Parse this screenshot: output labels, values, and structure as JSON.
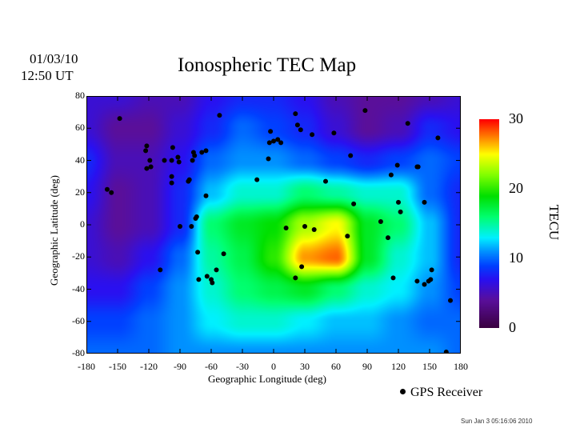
{
  "header": {
    "date": "01/03/10",
    "time": "12:50 UT"
  },
  "footer": {
    "timestamp": "Sun Jan  3 05:16:06 2010"
  },
  "chart_data": {
    "type": "heatmap",
    "title": "Ionospheric TEC Map",
    "xlabel": "Geographic Longitude (deg)",
    "ylabel": "Geographic Latitude (deg)",
    "xlim": [
      -180,
      180
    ],
    "ylim": [
      -80,
      80
    ],
    "xticks": [
      "-180",
      "-150",
      "-120",
      "-90",
      "-60",
      "-30",
      "0",
      "30",
      "60",
      "90",
      "120",
      "150",
      "180"
    ],
    "xtick_values": [
      -180,
      -150,
      -120,
      -90,
      -60,
      -30,
      0,
      30,
      60,
      90,
      120,
      150,
      180
    ],
    "yticks": [
      "80",
      "60",
      "40",
      "20",
      "0",
      "-20",
      "-40",
      "-60",
      "-80"
    ],
    "ytick_values": [
      80,
      60,
      40,
      20,
      0,
      -20,
      -40,
      -60,
      -80
    ],
    "colorbar": {
      "label": "TECU",
      "range": [
        0,
        30
      ],
      "ticks": [
        "30",
        "20",
        "10",
        "0"
      ],
      "tick_values": [
        30,
        20,
        10,
        0
      ],
      "colormap": [
        [
          0,
          "#3a003f"
        ],
        [
          4,
          "#5a0f9a"
        ],
        [
          7,
          "#2a10f0"
        ],
        [
          9,
          "#0040ff"
        ],
        [
          11,
          "#0090ff"
        ],
        [
          13,
          "#00f0ff"
        ],
        [
          16,
          "#00ff70"
        ],
        [
          19,
          "#00e000"
        ],
        [
          22,
          "#80ff00"
        ],
        [
          25,
          "#ffff00"
        ],
        [
          27.5,
          "#ff8000"
        ],
        [
          30,
          "#ff0000"
        ]
      ]
    },
    "grid_lons": [
      -180,
      -150,
      -120,
      -90,
      -60,
      -30,
      0,
      30,
      60,
      90,
      120,
      150,
      180
    ],
    "grid_lats": [
      80,
      60,
      40,
      20,
      0,
      -20,
      -40,
      -60,
      -80
    ],
    "tec_values": [
      [
        6,
        6,
        5,
        5,
        7,
        8,
        8,
        7,
        5,
        4,
        4,
        5,
        6
      ],
      [
        6,
        4,
        4,
        6,
        8,
        10,
        9,
        8,
        6,
        4,
        5,
        8,
        7
      ],
      [
        8,
        5,
        5,
        7,
        10,
        11,
        11,
        10,
        9,
        8,
        9,
        10,
        9
      ],
      [
        7,
        4,
        5,
        8,
        12,
        14,
        14,
        16,
        15,
        14,
        14,
        10,
        8
      ],
      [
        6,
        4,
        5,
        8,
        16,
        18,
        19,
        23,
        25,
        18,
        16,
        12,
        8
      ],
      [
        6,
        5,
        7,
        10,
        15,
        17,
        20,
        27,
        28,
        18,
        14,
        12,
        8
      ],
      [
        7,
        7,
        9,
        11,
        14,
        16,
        17,
        18,
        16,
        14,
        13,
        11,
        9
      ],
      [
        9,
        9,
        10,
        11,
        13,
        14,
        14,
        13,
        12,
        12,
        11,
        10,
        10
      ],
      [
        10,
        10,
        10,
        11,
        11,
        11,
        11,
        11,
        11,
        11,
        11,
        11,
        10
      ]
    ],
    "legend": {
      "label": "GPS Receiver",
      "placement": "bottom-right"
    },
    "receivers": [
      [
        -148,
        66
      ],
      [
        -122,
        49
      ],
      [
        -123,
        46
      ],
      [
        -119,
        40
      ],
      [
        -122,
        35
      ],
      [
        -118,
        36
      ],
      [
        -160,
        22
      ],
      [
        -156,
        20
      ],
      [
        -105,
        40
      ],
      [
        -97,
        48
      ],
      [
        -98,
        40
      ],
      [
        -92,
        42
      ],
      [
        -91,
        39
      ],
      [
        -98,
        30
      ],
      [
        -98,
        26
      ],
      [
        -78,
        40
      ],
      [
        -77,
        45
      ],
      [
        -76,
        43
      ],
      [
        -69,
        45
      ],
      [
        -65,
        46
      ],
      [
        -82,
        27
      ],
      [
        -81,
        28
      ],
      [
        -65,
        18
      ],
      [
        -75,
        4
      ],
      [
        -74,
        5
      ],
      [
        -90,
        -1
      ],
      [
        -79,
        -1
      ],
      [
        -73,
        -17
      ],
      [
        -72,
        -34
      ],
      [
        -64,
        -32
      ],
      [
        -60,
        -34
      ],
      [
        -59,
        -36
      ],
      [
        -55,
        -28
      ],
      [
        -48,
        -18
      ],
      [
        -109,
        -28
      ],
      [
        -52,
        68
      ],
      [
        -3,
        58
      ],
      [
        -4,
        51
      ],
      [
        0,
        52
      ],
      [
        4,
        53
      ],
      [
        7,
        51
      ],
      [
        -5,
        41
      ],
      [
        -16,
        28
      ],
      [
        21,
        69
      ],
      [
        23,
        62
      ],
      [
        26,
        59
      ],
      [
        37,
        56
      ],
      [
        58,
        57
      ],
      [
        88,
        71
      ],
      [
        74,
        43
      ],
      [
        50,
        27
      ],
      [
        77,
        13
      ],
      [
        12,
        -2
      ],
      [
        30,
        -1
      ],
      [
        39,
        -3
      ],
      [
        71,
        -7
      ],
      [
        27,
        -26
      ],
      [
        21,
        -33
      ],
      [
        103,
        2
      ],
      [
        110,
        -8
      ],
      [
        113,
        31
      ],
      [
        119,
        37
      ],
      [
        120,
        14
      ],
      [
        122,
        8
      ],
      [
        138,
        36
      ],
      [
        139,
        36
      ],
      [
        145,
        14
      ],
      [
        129,
        63
      ],
      [
        158,
        54
      ],
      [
        115,
        -33
      ],
      [
        138,
        -35
      ],
      [
        145,
        -37
      ],
      [
        149,
        -35
      ],
      [
        151,
        -34
      ],
      [
        152,
        -28
      ],
      [
        170,
        -47
      ],
      [
        166,
        -79
      ]
    ]
  }
}
